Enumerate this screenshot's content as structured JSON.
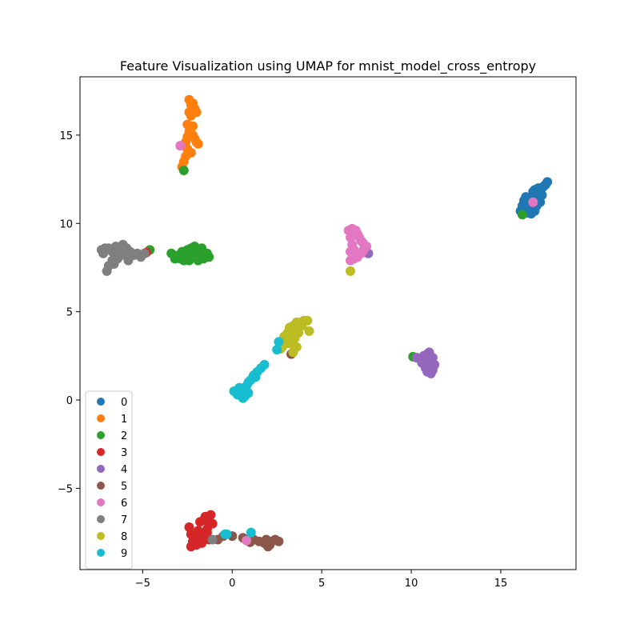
{
  "chart_data": {
    "type": "scatter",
    "title": "Feature Visualization using UMAP for mnist_model_cross_entropy",
    "xlabel": "",
    "ylabel": "",
    "xlim": [
      -8.5,
      19.2
    ],
    "ylim": [
      -9.6,
      18.3
    ],
    "x_ticks": [
      -5,
      0,
      5,
      10,
      15
    ],
    "y_ticks": [
      -5,
      0,
      5,
      10,
      15
    ],
    "x_tick_labels": [
      "−5",
      "0",
      "5",
      "10",
      "15"
    ],
    "y_tick_labels": [
      "−5",
      "0",
      "5",
      "10",
      "15"
    ],
    "grid": false,
    "legend_position": "lower-left",
    "series": [
      {
        "name": "0",
        "color": "#1f77b4",
        "points": [
          [
            16.1,
            10.7
          ],
          [
            16.2,
            11.0
          ],
          [
            16.3,
            11.3
          ],
          [
            16.4,
            11.5
          ],
          [
            16.5,
            10.6
          ],
          [
            16.6,
            10.9
          ],
          [
            16.7,
            11.2
          ],
          [
            16.8,
            11.5
          ],
          [
            16.9,
            10.7
          ],
          [
            17.0,
            11.0
          ],
          [
            17.1,
            11.4
          ],
          [
            17.2,
            11.8
          ],
          [
            17.3,
            12.0
          ],
          [
            17.4,
            12.1
          ],
          [
            17.5,
            12.2
          ],
          [
            17.6,
            12.35
          ],
          [
            17.0,
            11.7
          ],
          [
            16.8,
            11.8
          ],
          [
            17.2,
            11.2
          ],
          [
            16.4,
            11.0
          ],
          [
            16.7,
            10.55
          ],
          [
            17.1,
            12.0
          ],
          [
            16.9,
            11.9
          ],
          [
            17.3,
            11.6
          ],
          [
            16.6,
            11.4
          ]
        ]
      },
      {
        "name": "1",
        "color": "#ff7f0e",
        "points": [
          [
            -2.4,
            17.0
          ],
          [
            -2.3,
            16.7
          ],
          [
            -2.1,
            16.5
          ],
          [
            -2.0,
            16.3
          ],
          [
            -2.3,
            16.1
          ],
          [
            -2.5,
            15.6
          ],
          [
            -2.4,
            15.2
          ],
          [
            -2.2,
            15.0
          ],
          [
            -2.1,
            14.8
          ],
          [
            -1.9,
            14.5
          ],
          [
            -2.6,
            14.6
          ],
          [
            -2.5,
            14.2
          ],
          [
            -2.6,
            13.8
          ],
          [
            -2.7,
            13.5
          ],
          [
            -2.8,
            13.2
          ],
          [
            -2.3,
            14.0
          ],
          [
            -2.2,
            15.5
          ],
          [
            -2.4,
            16.3
          ],
          [
            -2.5,
            14.9
          ],
          [
            -2.0,
            14.6
          ],
          [
            -2.2,
            16.8
          ]
        ]
      },
      {
        "name": "2",
        "color": "#2ca02c",
        "points": [
          [
            -3.4,
            8.3
          ],
          [
            -3.2,
            8.0
          ],
          [
            -3.0,
            8.2
          ],
          [
            -2.8,
            8.4
          ],
          [
            -2.6,
            8.1
          ],
          [
            -2.4,
            7.9
          ],
          [
            -2.2,
            8.3
          ],
          [
            -2.0,
            8.5
          ],
          [
            -1.8,
            8.2
          ],
          [
            -1.6,
            8.0
          ],
          [
            -1.4,
            8.3
          ],
          [
            -1.3,
            8.1
          ],
          [
            -2.7,
            7.9
          ],
          [
            -2.3,
            8.6
          ],
          [
            -1.9,
            7.9
          ],
          [
            -2.1,
            8.7
          ],
          [
            -1.7,
            8.6
          ],
          [
            -2.5,
            8.5
          ],
          [
            -2.9,
            8.0
          ],
          [
            -2.7,
            13.0
          ],
          [
            16.2,
            10.5
          ],
          [
            10.1,
            2.45
          ],
          [
            -4.6,
            8.5
          ]
        ]
      },
      {
        "name": "3",
        "color": "#d62728",
        "points": [
          [
            -2.4,
            -7.2
          ],
          [
            -2.3,
            -7.6
          ],
          [
            -2.2,
            -8.0
          ],
          [
            -2.0,
            -8.2
          ],
          [
            -1.8,
            -7.9
          ],
          [
            -1.6,
            -7.7
          ],
          [
            -1.4,
            -7.3
          ],
          [
            -1.3,
            -6.9
          ],
          [
            -1.5,
            -6.6
          ],
          [
            -1.2,
            -6.5
          ],
          [
            -1.1,
            -7.0
          ],
          [
            -1.6,
            -6.8
          ],
          [
            -1.9,
            -7.4
          ],
          [
            -2.1,
            -7.8
          ],
          [
            -1.7,
            -8.1
          ],
          [
            -1.4,
            -7.5
          ],
          [
            -2.3,
            -8.3
          ],
          [
            -1.8,
            -6.9
          ],
          [
            -1.3,
            -7.9
          ],
          [
            -4.8,
            8.35
          ]
        ]
      },
      {
        "name": "4",
        "color": "#9467bd",
        "points": [
          [
            10.3,
            2.4
          ],
          [
            10.5,
            2.3
          ],
          [
            10.7,
            2.5
          ],
          [
            10.8,
            2.3
          ],
          [
            10.9,
            2.6
          ],
          [
            11.0,
            2.3
          ],
          [
            11.1,
            2.1
          ],
          [
            11.0,
            1.9
          ],
          [
            11.2,
            1.7
          ],
          [
            11.1,
            1.5
          ],
          [
            10.9,
            2.0
          ],
          [
            11.2,
            2.4
          ],
          [
            10.6,
            2.1
          ],
          [
            10.8,
            1.8
          ],
          [
            11.0,
            2.7
          ],
          [
            11.3,
            2.0
          ],
          [
            10.9,
            1.6
          ],
          [
            7.6,
            8.3
          ]
        ]
      },
      {
        "name": "5",
        "color": "#8c564b",
        "points": [
          [
            0.6,
            -7.8
          ],
          [
            0.8,
            -7.9
          ],
          [
            1.2,
            -7.9
          ],
          [
            1.5,
            -8.0
          ],
          [
            1.8,
            -8.1
          ],
          [
            2.0,
            -8.3
          ],
          [
            2.2,
            -8.0
          ],
          [
            2.4,
            -7.9
          ],
          [
            2.6,
            -8.0
          ],
          [
            1.9,
            -7.9
          ],
          [
            1.0,
            -8.05
          ],
          [
            -0.8,
            -7.9
          ],
          [
            -0.5,
            -7.7
          ],
          [
            0.0,
            -7.7
          ],
          [
            3.3,
            2.6
          ],
          [
            2.1,
            -8.2
          ]
        ]
      },
      {
        "name": "6",
        "color": "#e377c2",
        "points": [
          [
            6.5,
            9.6
          ],
          [
            6.7,
            9.7
          ],
          [
            6.9,
            9.6
          ],
          [
            7.0,
            9.4
          ],
          [
            7.1,
            9.2
          ],
          [
            7.2,
            9.0
          ],
          [
            7.3,
            8.9
          ],
          [
            7.4,
            8.6
          ],
          [
            7.2,
            8.3
          ],
          [
            7.0,
            8.1
          ],
          [
            6.8,
            8.0
          ],
          [
            6.6,
            7.9
          ],
          [
            6.6,
            8.4
          ],
          [
            6.7,
            8.8
          ],
          [
            6.6,
            9.2
          ],
          [
            7.3,
            8.45
          ],
          [
            6.9,
            9.5
          ],
          [
            7.5,
            8.7
          ],
          [
            6.8,
            8.5
          ],
          [
            -2.9,
            14.4
          ],
          [
            16.8,
            11.2
          ],
          [
            0.8,
            -7.95
          ]
        ]
      },
      {
        "name": "7",
        "color": "#7f7f7f",
        "points": [
          [
            -7.3,
            8.5
          ],
          [
            -7.1,
            8.6
          ],
          [
            -6.9,
            8.6
          ],
          [
            -6.7,
            8.4
          ],
          [
            -6.5,
            8.7
          ],
          [
            -6.3,
            8.5
          ],
          [
            -6.1,
            8.8
          ],
          [
            -5.9,
            8.6
          ],
          [
            -5.7,
            8.4
          ],
          [
            -5.5,
            8.2
          ],
          [
            -5.3,
            8.3
          ],
          [
            -5.1,
            8.1
          ],
          [
            -4.9,
            8.3
          ],
          [
            -6.7,
            7.9
          ],
          [
            -6.9,
            7.6
          ],
          [
            -7.0,
            7.3
          ],
          [
            -6.6,
            7.7
          ],
          [
            -6.4,
            8.0
          ],
          [
            -6.0,
            8.2
          ],
          [
            -5.8,
            7.9
          ],
          [
            -7.2,
            8.3
          ],
          [
            -6.2,
            8.3
          ],
          [
            -1.1,
            -7.9
          ]
        ]
      },
      {
        "name": "8",
        "color": "#bcbd22",
        "points": [
          [
            2.7,
            3.3
          ],
          [
            2.9,
            3.6
          ],
          [
            3.1,
            3.8
          ],
          [
            3.3,
            4.0
          ],
          [
            3.4,
            4.2
          ],
          [
            3.6,
            4.4
          ],
          [
            3.8,
            4.4
          ],
          [
            4.0,
            4.5
          ],
          [
            4.2,
            4.5
          ],
          [
            4.3,
            3.9
          ],
          [
            3.9,
            4.2
          ],
          [
            3.5,
            3.5
          ],
          [
            3.6,
            3.0
          ],
          [
            3.4,
            2.7
          ],
          [
            3.2,
            3.2
          ],
          [
            3.0,
            3.4
          ],
          [
            2.8,
            3.0
          ],
          [
            2.7,
            2.9
          ],
          [
            3.7,
            3.8
          ],
          [
            3.2,
            4.1
          ],
          [
            6.6,
            7.3
          ]
        ]
      },
      {
        "name": "9",
        "color": "#17becf",
        "points": [
          [
            0.1,
            0.5
          ],
          [
            0.3,
            0.3
          ],
          [
            0.5,
            0.4
          ],
          [
            0.6,
            0.1
          ],
          [
            0.7,
            0.6
          ],
          [
            0.8,
            0.8
          ],
          [
            0.9,
            1.0
          ],
          [
            1.0,
            1.1
          ],
          [
            1.1,
            1.2
          ],
          [
            1.2,
            1.4
          ],
          [
            1.4,
            1.6
          ],
          [
            1.6,
            1.8
          ],
          [
            1.8,
            2.0
          ],
          [
            0.4,
            0.7
          ],
          [
            0.9,
            0.4
          ],
          [
            0.7,
            0.2
          ],
          [
            1.3,
            1.3
          ],
          [
            2.5,
            2.85
          ],
          [
            2.6,
            3.3
          ],
          [
            -0.3,
            -7.6
          ],
          [
            1.05,
            -7.5
          ],
          [
            -0.4,
            -7.6
          ]
        ]
      }
    ]
  }
}
